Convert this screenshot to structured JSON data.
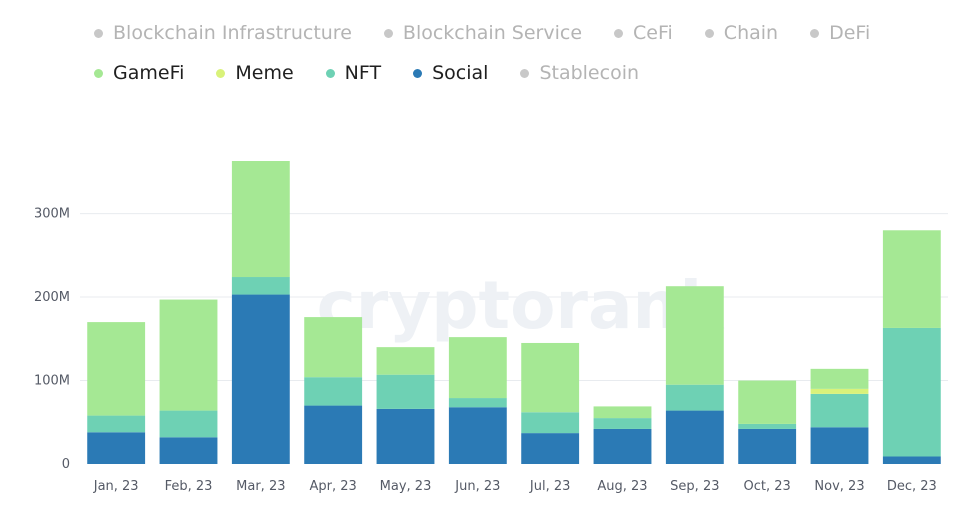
{
  "legend": {
    "row1": [
      {
        "label": "Blockchain Infrastructure",
        "color": "#c8c8c8",
        "active": false
      },
      {
        "label": "Blockchain Service",
        "color": "#c8c8c8",
        "active": false
      },
      {
        "label": "CeFi",
        "color": "#c8c8c8",
        "active": false
      },
      {
        "label": "Chain",
        "color": "#c8c8c8",
        "active": false
      },
      {
        "label": "DeFi",
        "color": "#c8c8c8",
        "active": false
      }
    ],
    "row2": [
      {
        "label": "GameFi",
        "color": "#a5e894",
        "active": true
      },
      {
        "label": "Meme",
        "color": "#d9f27a",
        "active": true
      },
      {
        "label": "NFT",
        "color": "#6ed1b4",
        "active": true
      },
      {
        "label": "Social",
        "color": "#2b7ab5",
        "active": true
      },
      {
        "label": "Stablecoin",
        "color": "#c8c8c8",
        "active": false
      }
    ]
  },
  "watermark": "cryptorank",
  "chart_data": {
    "type": "bar",
    "stacked": true,
    "categories": [
      "Jan, 23",
      "Feb, 23",
      "Mar, 23",
      "Apr, 23",
      "May, 23",
      "Jun, 23",
      "Jul, 23",
      "Aug, 23",
      "Sep, 23",
      "Oct, 23",
      "Nov, 23",
      "Dec, 23"
    ],
    "series": [
      {
        "name": "Social",
        "color": "#2b7ab5",
        "values": [
          38,
          32,
          203,
          70,
          66,
          68,
          37,
          42,
          64,
          42,
          44,
          9
        ]
      },
      {
        "name": "NFT",
        "color": "#6ed1b4",
        "values": [
          20,
          32,
          21,
          34,
          41,
          11,
          25,
          13,
          31,
          6,
          40,
          154
        ]
      },
      {
        "name": "Meme",
        "color": "#d9f27a",
        "values": [
          0,
          0,
          0,
          0,
          0,
          0,
          0,
          0,
          0,
          0,
          6,
          0
        ]
      },
      {
        "name": "GameFi",
        "color": "#a5e894",
        "values": [
          112,
          133,
          139,
          72,
          33,
          73,
          83,
          14,
          118,
          52,
          24,
          117
        ]
      }
    ],
    "yticks": [
      {
        "value": 0,
        "label": "0"
      },
      {
        "value": 100,
        "label": "100M"
      },
      {
        "value": 200,
        "label": "200M"
      },
      {
        "value": 300,
        "label": "300M"
      }
    ],
    "ylim": [
      0,
      363
    ],
    "grid": true,
    "legend_position": "top-left"
  }
}
